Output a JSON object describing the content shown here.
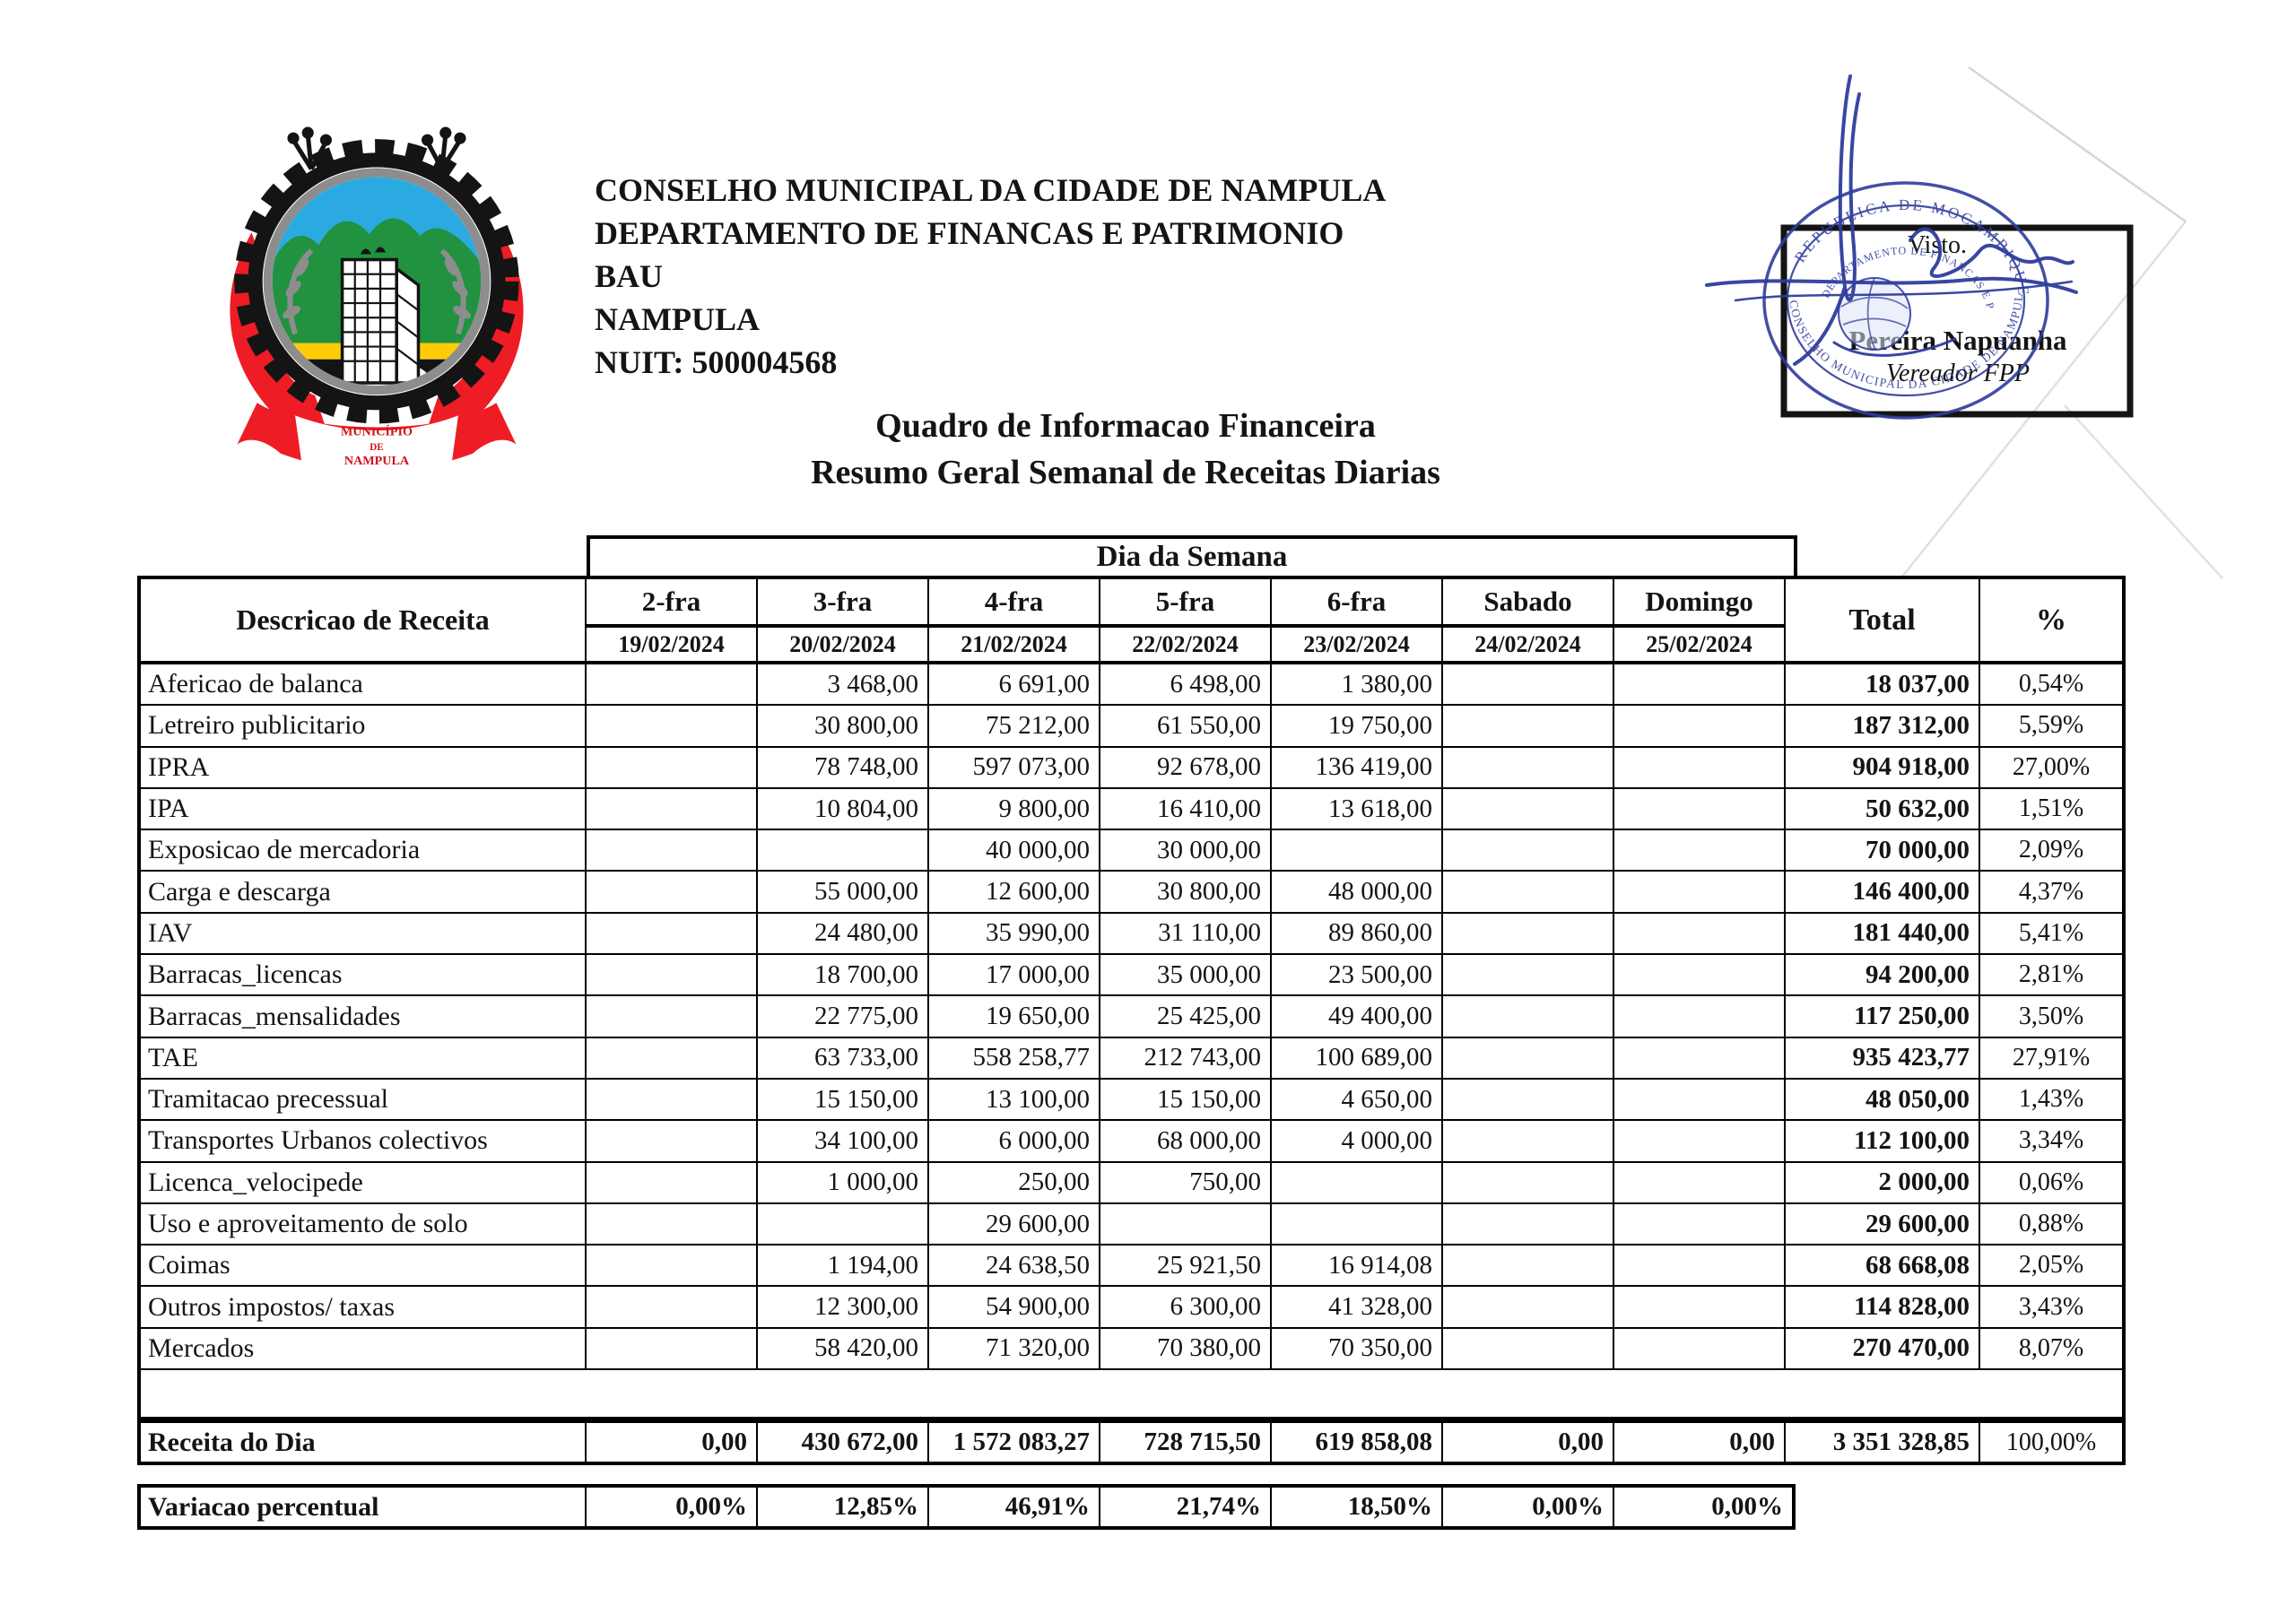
{
  "header": {
    "org_lines": [
      "CONSELHO MUNICIPAL DA CIDADE DE NAMPULA",
      "DEPARTAMENTO DE FINANCAS E PATRIMONIO",
      "BAU",
      "NAMPULA",
      "NUIT: 500004568"
    ],
    "title1": "Quadro de Informacao Financeira",
    "title2": "Resumo Geral Semanal de Receitas Diarias",
    "logo_caption": [
      "MUNICÍPIO",
      "DE",
      "NAMPULA"
    ]
  },
  "stamp": {
    "visto": "Visto.",
    "name": "Pereira Napuanha",
    "role": "Vereador FPP",
    "ring_top": "REPUBLICA DE MOCAMBIQUE",
    "ring_bottom": "CONSELHO MUNICIPAL DA CIDADE DE NAMPULA",
    "dept": "DEPARTAMENTO DE FINANCAS E PATRIMONIO",
    "ink_color": "#2f3d9c"
  },
  "table": {
    "group_header": "Dia da Semana",
    "desc_header": "Descricao de Receita",
    "total_header": "Total",
    "pct_header": "%",
    "days": [
      {
        "name": "2-fra",
        "date": "19/02/2024"
      },
      {
        "name": "3-fra",
        "date": "20/02/2024"
      },
      {
        "name": "4-fra",
        "date": "21/02/2024"
      },
      {
        "name": "5-fra",
        "date": "22/02/2024"
      },
      {
        "name": "6-fra",
        "date": "23/02/2024"
      },
      {
        "name": "Sabado",
        "date": "24/02/2024"
      },
      {
        "name": "Domingo",
        "date": "25/02/2024"
      }
    ],
    "rows": [
      {
        "label": "Afericao de balanca",
        "values": [
          "",
          "3 468,00",
          "6 691,00",
          "6 498,00",
          "1 380,00",
          "",
          ""
        ],
        "total": "18 037,00",
        "pct": "0,54%"
      },
      {
        "label": "Letreiro publicitario",
        "values": [
          "",
          "30 800,00",
          "75 212,00",
          "61 550,00",
          "19 750,00",
          "",
          ""
        ],
        "total": "187 312,00",
        "pct": "5,59%"
      },
      {
        "label": "IPRA",
        "values": [
          "",
          "78 748,00",
          "597 073,00",
          "92 678,00",
          "136 419,00",
          "",
          ""
        ],
        "total": "904 918,00",
        "pct": "27,00%"
      },
      {
        "label": "IPA",
        "values": [
          "",
          "10 804,00",
          "9 800,00",
          "16 410,00",
          "13 618,00",
          "",
          ""
        ],
        "total": "50 632,00",
        "pct": "1,51%"
      },
      {
        "label": "Exposicao de mercadoria",
        "values": [
          "",
          "",
          "40 000,00",
          "30 000,00",
          "",
          "",
          ""
        ],
        "total": "70 000,00",
        "pct": "2,09%"
      },
      {
        "label": "Carga e descarga",
        "values": [
          "",
          "55 000,00",
          "12 600,00",
          "30 800,00",
          "48 000,00",
          "",
          ""
        ],
        "total": "146 400,00",
        "pct": "4,37%"
      },
      {
        "label": "IAV",
        "values": [
          "",
          "24 480,00",
          "35 990,00",
          "31 110,00",
          "89 860,00",
          "",
          ""
        ],
        "total": "181 440,00",
        "pct": "5,41%"
      },
      {
        "label": "Barracas_licencas",
        "values": [
          "",
          "18 700,00",
          "17 000,00",
          "35 000,00",
          "23 500,00",
          "",
          ""
        ],
        "total": "94 200,00",
        "pct": "2,81%"
      },
      {
        "label": "Barracas_mensalidades",
        "values": [
          "",
          "22 775,00",
          "19 650,00",
          "25 425,00",
          "49 400,00",
          "",
          ""
        ],
        "total": "117 250,00",
        "pct": "3,50%"
      },
      {
        "label": "TAE",
        "values": [
          "",
          "63 733,00",
          "558 258,77",
          "212 743,00",
          "100 689,00",
          "",
          ""
        ],
        "total": "935 423,77",
        "pct": "27,91%"
      },
      {
        "label": "Tramitacao precessual",
        "values": [
          "",
          "15 150,00",
          "13 100,00",
          "15 150,00",
          "4 650,00",
          "",
          ""
        ],
        "total": "48 050,00",
        "pct": "1,43%"
      },
      {
        "label": "Transportes Urbanos colectivos",
        "values": [
          "",
          "34 100,00",
          "6 000,00",
          "68 000,00",
          "4 000,00",
          "",
          ""
        ],
        "total": "112 100,00",
        "pct": "3,34%"
      },
      {
        "label": "Licenca_velocipede",
        "values": [
          "",
          "1 000,00",
          "250,00",
          "750,00",
          "",
          "",
          ""
        ],
        "total": "2 000,00",
        "pct": "0,06%"
      },
      {
        "label": "Uso e aproveitamento de solo",
        "values": [
          "",
          "",
          "29 600,00",
          "",
          "",
          "",
          ""
        ],
        "total": "29 600,00",
        "pct": "0,88%"
      },
      {
        "label": "Coimas",
        "values": [
          "",
          "1 194,00",
          "24 638,50",
          "25 921,50",
          "16 914,08",
          "",
          ""
        ],
        "total": "68 668,08",
        "pct": "2,05%"
      },
      {
        "label": "Outros impostos/ taxas",
        "values": [
          "",
          "12 300,00",
          "54 900,00",
          "6 300,00",
          "41 328,00",
          "",
          ""
        ],
        "total": "114 828,00",
        "pct": "3,43%"
      },
      {
        "label": "Mercados",
        "values": [
          "",
          "58 420,00",
          "71 320,00",
          "70 380,00",
          "70 350,00",
          "",
          ""
        ],
        "total": "270 470,00",
        "pct": "8,07%"
      }
    ],
    "summary": {
      "label": "Receita do Dia",
      "values": [
        "0,00",
        "430 672,00",
        "1 572 083,27",
        "728 715,50",
        "619 858,08",
        "0,00",
        "0,00"
      ],
      "total": "3 351 328,85",
      "pct": "100,00%"
    },
    "variation": {
      "label": "Variacao percentual",
      "values": [
        "0,00%",
        "12,85%",
        "46,91%",
        "21,74%",
        "18,50%",
        "0,00%",
        "0,00%"
      ]
    }
  }
}
